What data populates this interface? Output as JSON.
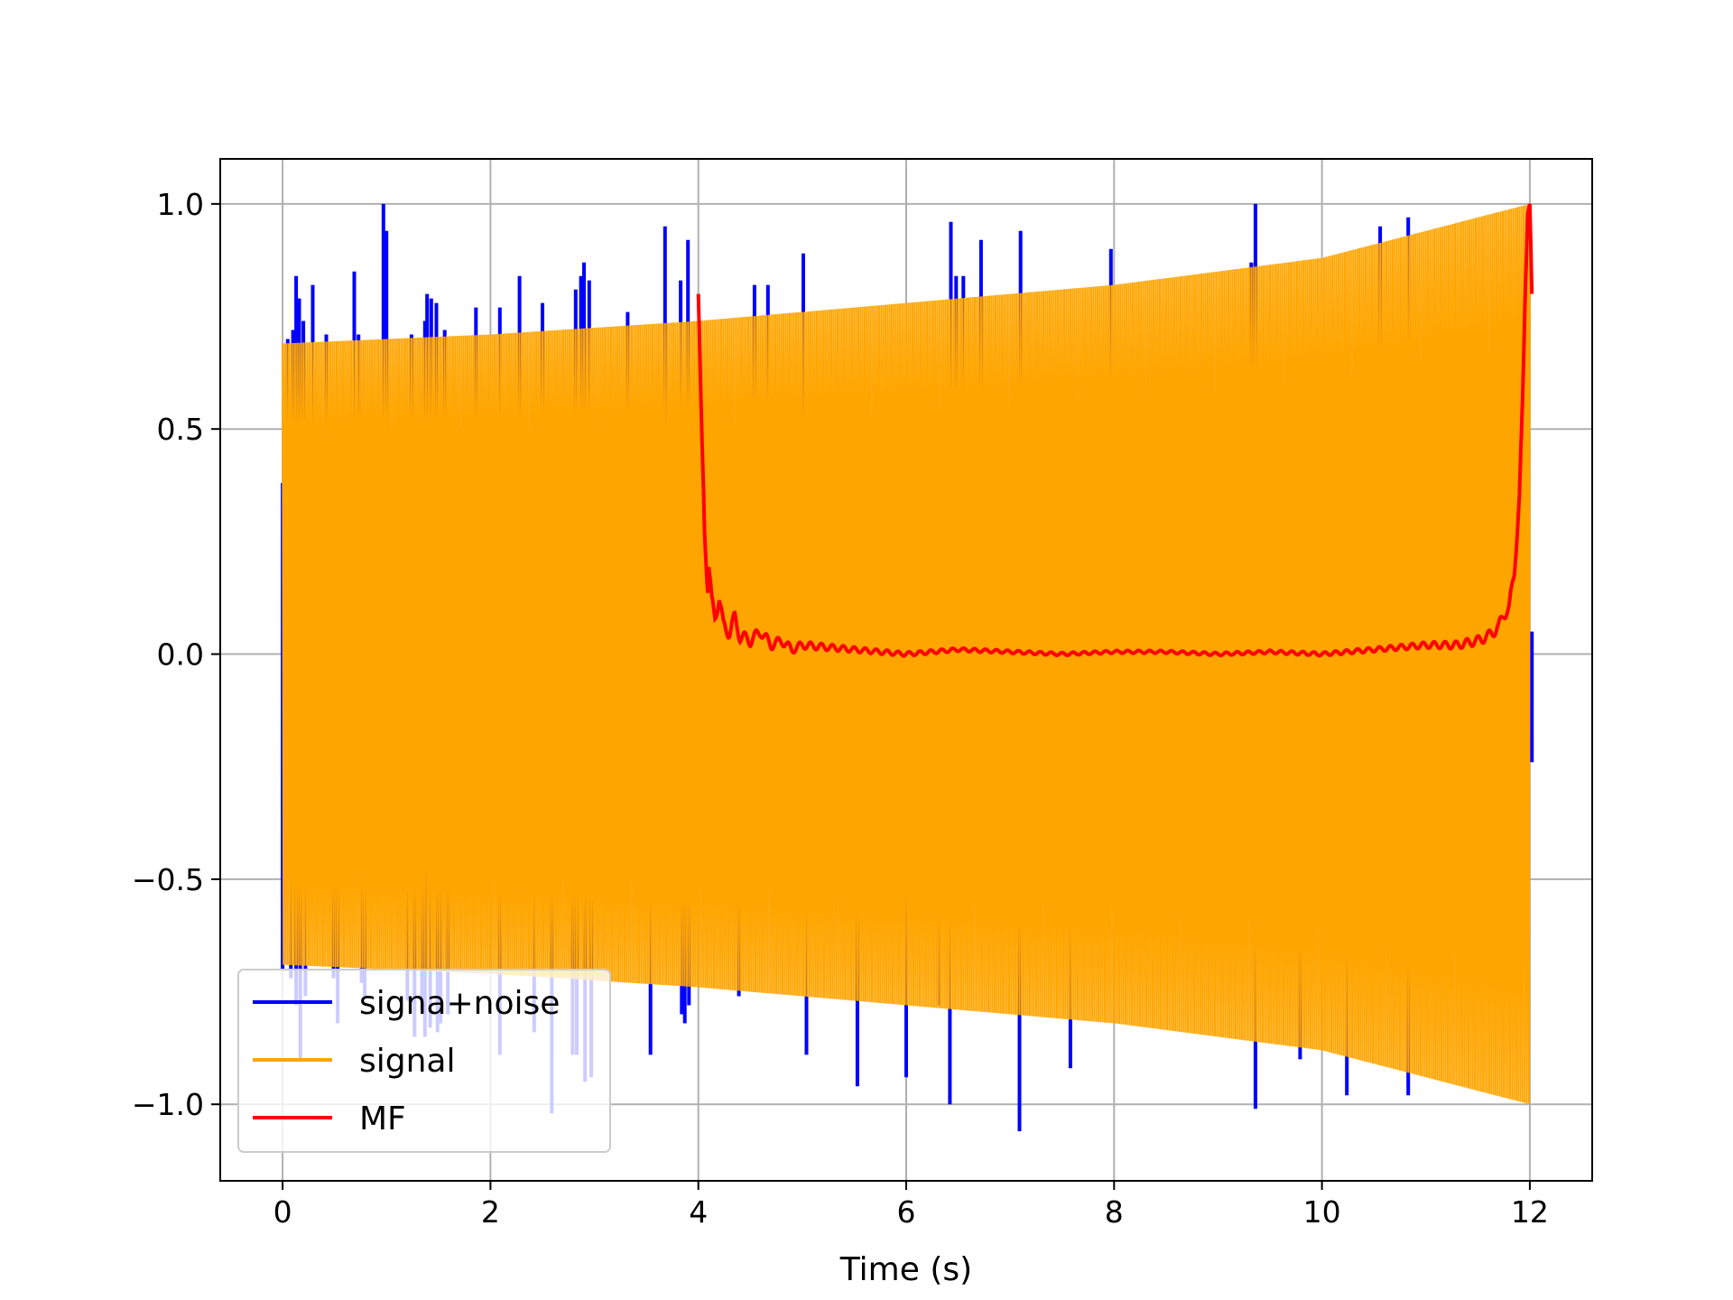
{
  "chart_data": {
    "type": "line",
    "title": "",
    "xlabel": "Time (s)",
    "ylabel": "",
    "xlim": [
      -0.6,
      12.6
    ],
    "ylim": [
      -1.17,
      1.1
    ],
    "xticks": [
      0,
      2,
      4,
      6,
      8,
      10,
      12
    ],
    "xtick_labels": [
      "0",
      "2",
      "4",
      "6",
      "8",
      "10",
      "12"
    ],
    "yticks": [
      -1.0,
      -0.5,
      0.0,
      0.5,
      1.0
    ],
    "ytick_labels": [
      "−1.0",
      "−0.5",
      "0.0",
      "0.5",
      "1.0"
    ],
    "grid": true,
    "legend_position": "lower-left",
    "colors": {
      "noise": "#0000ff",
      "signal": "#ffa500",
      "mf": "#ff0000",
      "grid": "#b0b0b0"
    },
    "series": [
      {
        "name": "signa+noise",
        "color": "#0000ff",
        "description": "signal plus sparse noise spikes, 0-12 s",
        "spikes_up": [
          [
            0.05,
            0.7
          ],
          [
            0.1,
            0.72
          ],
          [
            0.13,
            0.84
          ],
          [
            0.16,
            0.79
          ],
          [
            0.2,
            0.74
          ],
          [
            0.29,
            0.82
          ],
          [
            0.42,
            0.71
          ],
          [
            0.69,
            0.85
          ],
          [
            0.73,
            0.71
          ],
          [
            0.97,
            1.0
          ],
          [
            1.0,
            0.94
          ],
          [
            1.24,
            0.71
          ],
          [
            1.37,
            0.74
          ],
          [
            1.39,
            0.8
          ],
          [
            1.43,
            0.79
          ],
          [
            1.48,
            0.78
          ],
          [
            1.56,
            0.72
          ],
          [
            1.86,
            0.77
          ],
          [
            2.09,
            0.77
          ],
          [
            2.28,
            0.84
          ],
          [
            2.5,
            0.78
          ],
          [
            2.82,
            0.81
          ],
          [
            2.87,
            0.84
          ],
          [
            2.9,
            0.87
          ],
          [
            2.95,
            0.83
          ],
          [
            3.32,
            0.76
          ],
          [
            3.68,
            0.95
          ],
          [
            3.83,
            0.83
          ],
          [
            3.9,
            0.92
          ],
          [
            4.54,
            0.82
          ],
          [
            4.67,
            0.82
          ],
          [
            5.01,
            0.89
          ],
          [
            6.43,
            0.96
          ],
          [
            6.48,
            0.84
          ],
          [
            6.55,
            0.84
          ],
          [
            6.72,
            0.92
          ],
          [
            7.1,
            0.94
          ],
          [
            7.97,
            0.9
          ],
          [
            9.32,
            0.87
          ],
          [
            9.36,
            1.0
          ],
          [
            10.56,
            0.95
          ],
          [
            10.83,
            0.97
          ]
        ],
        "spikes_down": [
          [
            0.08,
            -0.72
          ],
          [
            0.13,
            -0.78
          ],
          [
            0.17,
            -0.9
          ],
          [
            0.22,
            -0.76
          ],
          [
            0.49,
            -0.72
          ],
          [
            0.53,
            -0.82
          ],
          [
            0.76,
            -0.73
          ],
          [
            0.79,
            -0.76
          ],
          [
            1.2,
            -0.77
          ],
          [
            1.27,
            -0.85
          ],
          [
            1.34,
            -0.79
          ],
          [
            1.37,
            -0.85
          ],
          [
            1.42,
            -0.83
          ],
          [
            1.49,
            -0.84
          ],
          [
            1.52,
            -0.82
          ],
          [
            1.59,
            -0.8
          ],
          [
            2.09,
            -0.89
          ],
          [
            2.42,
            -0.84
          ],
          [
            2.59,
            -1.02
          ],
          [
            2.79,
            -0.89
          ],
          [
            2.83,
            -0.89
          ],
          [
            2.91,
            -0.95
          ],
          [
            2.97,
            -0.94
          ],
          [
            3.54,
            -0.89
          ],
          [
            3.84,
            -0.8
          ],
          [
            3.87,
            -0.82
          ],
          [
            3.91,
            -0.78
          ],
          [
            4.39,
            -0.76
          ],
          [
            5.04,
            -0.89
          ],
          [
            5.53,
            -0.96
          ],
          [
            6.0,
            -0.94
          ],
          [
            6.32,
            -0.78
          ],
          [
            6.42,
            -1.0
          ],
          [
            7.09,
            -1.06
          ],
          [
            7.58,
            -0.92
          ],
          [
            9.36,
            -1.01
          ],
          [
            9.79,
            -0.9
          ],
          [
            10.24,
            -0.98
          ],
          [
            10.83,
            -0.98
          ]
        ]
      },
      {
        "name": "signal",
        "color": "#ffa500",
        "description": "dense oscillation from t=0 to t=12, envelope grows from 0.69 to 1.0",
        "envelope": {
          "t": [
            0,
            2,
            4,
            6,
            8,
            10,
            12
          ],
          "amp": [
            0.69,
            0.71,
            0.74,
            0.78,
            0.82,
            0.88,
            1.0
          ]
        }
      },
      {
        "name": "MF",
        "color": "#ff0000",
        "description": "matched filter output, t=4 to t=12",
        "points": [
          [
            4.0,
            0.8
          ],
          [
            4.03,
            0.52
          ],
          [
            4.06,
            0.28
          ],
          [
            4.09,
            0.15
          ],
          [
            4.1,
            0.2
          ],
          [
            4.13,
            0.11
          ],
          [
            4.16,
            0.08
          ],
          [
            4.2,
            0.13
          ],
          [
            4.24,
            0.06
          ],
          [
            4.3,
            0.05
          ],
          [
            4.35,
            0.08
          ],
          [
            4.4,
            0.04
          ],
          [
            4.5,
            0.03
          ],
          [
            4.6,
            0.05
          ],
          [
            4.7,
            0.02
          ],
          [
            4.8,
            0.03
          ],
          [
            4.9,
            0.01
          ],
          [
            5.0,
            0.02
          ],
          [
            5.5,
            0.01
          ],
          [
            6.0,
            0.0
          ],
          [
            6.5,
            0.01
          ],
          [
            7.0,
            0.005
          ],
          [
            7.5,
            0.0
          ],
          [
            8.0,
            0.005
          ],
          [
            8.5,
            0.005
          ],
          [
            9.0,
            0.0
          ],
          [
            9.5,
            0.005
          ],
          [
            10.0,
            0.0
          ],
          [
            10.5,
            0.01
          ],
          [
            11.0,
            0.02
          ],
          [
            11.3,
            0.02
          ],
          [
            11.5,
            0.03
          ],
          [
            11.6,
            0.04
          ],
          [
            11.7,
            0.06
          ],
          [
            11.75,
            0.09
          ],
          [
            11.8,
            0.1
          ],
          [
            11.85,
            0.18
          ],
          [
            11.9,
            0.35
          ],
          [
            11.93,
            0.55
          ],
          [
            11.96,
            0.85
          ],
          [
            11.98,
            0.98
          ],
          [
            12.0,
            1.0
          ],
          [
            12.02,
            0.8
          ]
        ]
      }
    ]
  }
}
